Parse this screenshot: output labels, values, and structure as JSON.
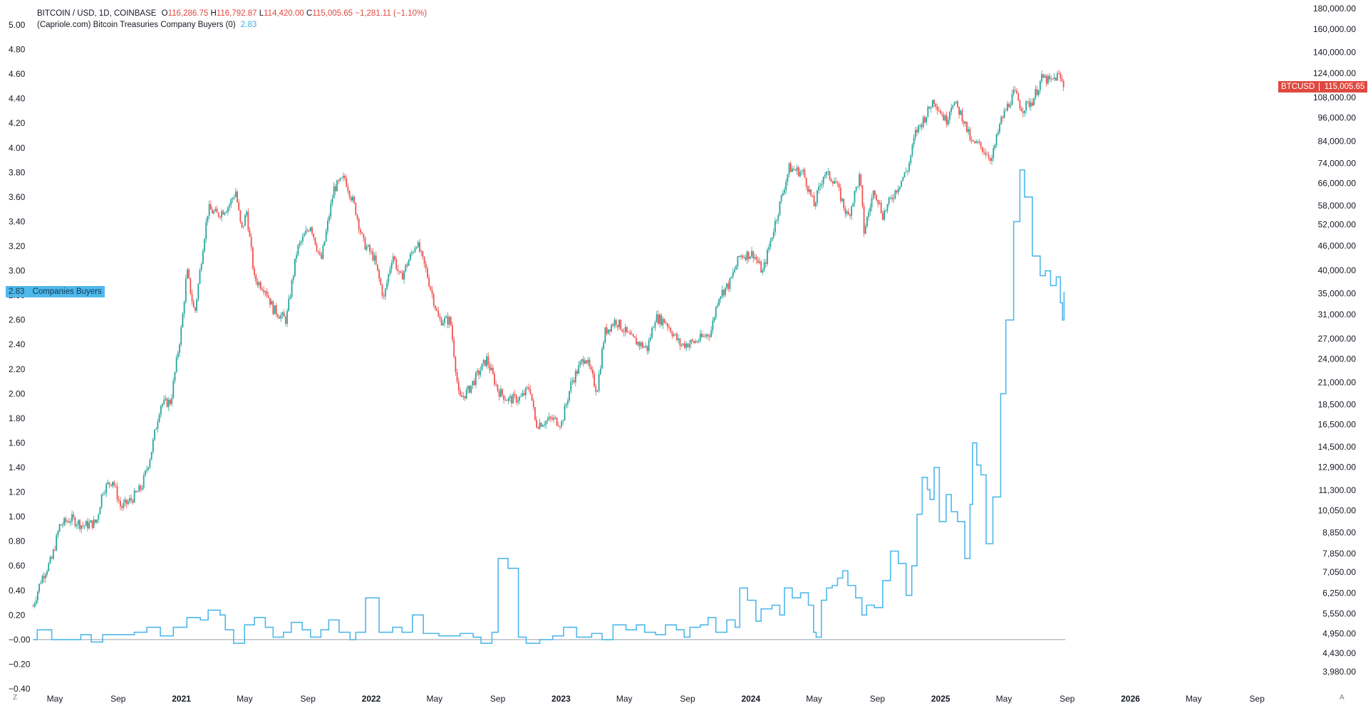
{
  "legend": {
    "symbol": "BITCOIN / USD, 1D, COINBASE",
    "o_label": "O",
    "o_value": "116,286.75",
    "h_label": "H",
    "h_value": "116,792.87",
    "l_label": "L",
    "l_value": "114,420.00",
    "c_label": "C",
    "c_value": "115,005.65",
    "change": "−1,281.11 (−1.10%)",
    "indicator": "(Capriole.com) Bitcoin Treasuries Company Buyers (0)",
    "indicator_value": "2.83"
  },
  "badges": {
    "left_value": "2.83",
    "left_label": "Companies Buyers",
    "right_label": "BTCUSD",
    "right_value": "115,005.65"
  },
  "corners": {
    "left": "Z",
    "right": "A"
  },
  "colors": {
    "up": "#26a69a",
    "down": "#ef5350",
    "indicator": "#4fb8ea",
    "price_badge": "#e0483f",
    "indicator_badge": "#4fb8ea"
  },
  "chart_data": {
    "type": "line",
    "left_axis": {
      "ticks": [
        "5.00",
        "4.80",
        "4.60",
        "4.40",
        "4.20",
        "4.00",
        "3.80",
        "3.60",
        "3.40",
        "3.20",
        "3.00",
        "2.80",
        "2.60",
        "2.40",
        "2.20",
        "2.00",
        "1.80",
        "1.60",
        "1.40",
        "1.20",
        "1.00",
        "0.80",
        "0.60",
        "0.40",
        "0.20",
        "−0.00",
        "−0.20",
        "−0.40"
      ],
      "range": [
        -0.4,
        5.0
      ]
    },
    "right_axis": {
      "scale": "log",
      "ticks": [
        "180,000.00",
        "160,000.00",
        "140,000.00",
        "124,000.00",
        "108,000.00",
        "96,000.00",
        "84,000.00",
        "74,000.00",
        "66,000.00",
        "58,000.00",
        "52,000.00",
        "46,000.00",
        "40,000.00",
        "35,000.00",
        "31,000.00",
        "27,000.00",
        "24,000.00",
        "21,000.00",
        "18,500.00",
        "16,500.00",
        "14,500.00",
        "12,900.00",
        "11,300.00",
        "10,050.00",
        "8,850.00",
        "7,850.00",
        "7,050.00",
        "6,250.00",
        "5,550.00",
        "4,950.00",
        "4,430.00",
        "3,980.00"
      ]
    },
    "x_axis": {
      "ticks": [
        {
          "label": "May",
          "bold": false
        },
        {
          "label": "Sep",
          "bold": false
        },
        {
          "label": "2021",
          "bold": true
        },
        {
          "label": "May",
          "bold": false
        },
        {
          "label": "Sep",
          "bold": false
        },
        {
          "label": "2022",
          "bold": true
        },
        {
          "label": "May",
          "bold": false
        },
        {
          "label": "Sep",
          "bold": false
        },
        {
          "label": "2023",
          "bold": true
        },
        {
          "label": "May",
          "bold": false
        },
        {
          "label": "Sep",
          "bold": false
        },
        {
          "label": "2024",
          "bold": true
        },
        {
          "label": "May",
          "bold": false
        },
        {
          "label": "Sep",
          "bold": false
        },
        {
          "label": "2025",
          "bold": true
        },
        {
          "label": "May",
          "bold": false
        },
        {
          "label": "Sep",
          "bold": false
        },
        {
          "label": "2026",
          "bold": true
        },
        {
          "label": "May",
          "bold": false
        },
        {
          "label": "Sep",
          "bold": false
        }
      ]
    },
    "series": [
      {
        "type": "candlestick",
        "name": "BTCUSD",
        "points": [
          [
            "2020-03-20",
            5800
          ],
          [
            "2020-04-05",
            6800
          ],
          [
            "2020-04-25",
            7600
          ],
          [
            "2020-05-10",
            9200
          ],
          [
            "2020-06-01",
            9600
          ],
          [
            "2020-06-25",
            9200
          ],
          [
            "2020-07-20",
            9400
          ],
          [
            "2020-08-01",
            11300
          ],
          [
            "2020-08-20",
            12000
          ],
          [
            "2020-09-05",
            10200
          ],
          [
            "2020-09-25",
            10700
          ],
          [
            "2020-10-15",
            11500
          ],
          [
            "2020-11-01",
            13800
          ],
          [
            "2020-11-20",
            18500
          ],
          [
            "2020-12-10",
            18800
          ],
          [
            "2020-12-31",
            29000
          ],
          [
            "2021-01-10",
            40000
          ],
          [
            "2021-01-25",
            31000
          ],
          [
            "2021-02-10",
            46000
          ],
          [
            "2021-02-20",
            57000
          ],
          [
            "2021-03-10",
            55000
          ],
          [
            "2021-04-01",
            58000
          ],
          [
            "2021-04-14",
            63000
          ],
          [
            "2021-04-25",
            50000
          ],
          [
            "2021-05-05",
            56000
          ],
          [
            "2021-05-20",
            38000
          ],
          [
            "2021-06-10",
            36000
          ],
          [
            "2021-06-25",
            32000
          ],
          [
            "2021-07-20",
            30000
          ],
          [
            "2021-08-10",
            45000
          ],
          [
            "2021-09-05",
            52000
          ],
          [
            "2021-09-25",
            42000
          ],
          [
            "2021-10-20",
            64000
          ],
          [
            "2021-11-10",
            68000
          ],
          [
            "2021-11-30",
            57000
          ],
          [
            "2021-12-15",
            47000
          ],
          [
            "2022-01-05",
            43000
          ],
          [
            "2022-01-24",
            34000
          ],
          [
            "2022-02-10",
            44000
          ],
          [
            "2022-02-25",
            38000
          ],
          [
            "2022-03-28",
            47000
          ],
          [
            "2022-04-15",
            40000
          ],
          [
            "2022-05-10",
            30000
          ],
          [
            "2022-06-01",
            30000
          ],
          [
            "2022-06-18",
            19000
          ],
          [
            "2022-07-05",
            20000
          ],
          [
            "2022-08-10",
            24000
          ],
          [
            "2022-09-01",
            20000
          ],
          [
            "2022-09-20",
            19000
          ],
          [
            "2022-10-15",
            19200
          ],
          [
            "2022-11-01",
            20500
          ],
          [
            "2022-11-12",
            16500
          ],
          [
            "2022-12-15",
            17000
          ],
          [
            "2023-01-01",
            16600
          ],
          [
            "2023-01-20",
            21000
          ],
          [
            "2023-02-15",
            24500
          ],
          [
            "2023-03-10",
            20000
          ],
          [
            "2023-03-25",
            28000
          ],
          [
            "2023-04-15",
            30000
          ],
          [
            "2023-05-15",
            27000
          ],
          [
            "2023-06-15",
            25500
          ],
          [
            "2023-06-30",
            30500
          ],
          [
            "2023-07-20",
            29800
          ],
          [
            "2023-08-18",
            26000
          ],
          [
            "2023-09-15",
            26500
          ],
          [
            "2023-10-15",
            28000
          ],
          [
            "2023-10-30",
            34500
          ],
          [
            "2023-11-20",
            37000
          ],
          [
            "2023-12-10",
            43500
          ],
          [
            "2024-01-05",
            44000
          ],
          [
            "2024-01-23",
            39500
          ],
          [
            "2024-02-15",
            52000
          ],
          [
            "2024-03-01",
            62000
          ],
          [
            "2024-03-14",
            72000
          ],
          [
            "2024-04-10",
            70000
          ],
          [
            "2024-05-01",
            58000
          ],
          [
            "2024-05-20",
            70000
          ],
          [
            "2024-06-10",
            67000
          ],
          [
            "2024-07-05",
            54000
          ],
          [
            "2024-07-28",
            69000
          ],
          [
            "2024-08-05",
            50000
          ],
          [
            "2024-08-25",
            64000
          ],
          [
            "2024-09-10",
            55000
          ],
          [
            "2024-10-01",
            62000
          ],
          [
            "2024-10-29",
            72000
          ],
          [
            "2024-11-12",
            88000
          ],
          [
            "2024-12-05",
            99000
          ],
          [
            "2024-12-17",
            107000
          ],
          [
            "2025-01-10",
            94000
          ],
          [
            "2025-01-22",
            106000
          ],
          [
            "2025-02-10",
            97000
          ],
          [
            "2025-02-28",
            83000
          ],
          [
            "2025-03-15",
            82000
          ],
          [
            "2025-04-08",
            76000
          ],
          [
            "2025-04-25",
            94000
          ],
          [
            "2025-05-10",
            104000
          ],
          [
            "2025-05-22",
            111000
          ],
          [
            "2025-06-05",
            101000
          ],
          [
            "2025-06-25",
            106000
          ],
          [
            "2025-07-14",
            121000
          ],
          [
            "2025-07-30",
            118000
          ],
          [
            "2025-08-14",
            123000
          ],
          [
            "2025-08-25",
            115005.65
          ]
        ]
      },
      {
        "type": "line",
        "name": "Companies Buyers",
        "points": [
          [
            "2020-03-20",
            0.0
          ],
          [
            "2020-03-28",
            0.08
          ],
          [
            "2020-04-25",
            0.0
          ],
          [
            "2020-06-20",
            0.04
          ],
          [
            "2020-07-10",
            -0.02
          ],
          [
            "2020-08-01",
            0.04
          ],
          [
            "2020-10-01",
            0.06
          ],
          [
            "2020-10-25",
            0.1
          ],
          [
            "2020-11-20",
            0.03
          ],
          [
            "2020-12-15",
            0.1
          ],
          [
            "2021-01-10",
            0.18
          ],
          [
            "2021-02-05",
            0.16
          ],
          [
            "2021-02-20",
            0.24
          ],
          [
            "2021-03-15",
            0.2
          ],
          [
            "2021-03-25",
            0.08
          ],
          [
            "2021-04-10",
            -0.03
          ],
          [
            "2021-05-01",
            0.12
          ],
          [
            "2021-05-20",
            0.18
          ],
          [
            "2021-06-10",
            0.1
          ],
          [
            "2021-06-25",
            0.02
          ],
          [
            "2021-07-15",
            0.06
          ],
          [
            "2021-07-30",
            0.14
          ],
          [
            "2021-08-20",
            0.08
          ],
          [
            "2021-09-05",
            0.02
          ],
          [
            "2021-09-25",
            0.08
          ],
          [
            "2021-10-10",
            0.16
          ],
          [
            "2021-10-30",
            0.06
          ],
          [
            "2021-11-20",
            0.0
          ],
          [
            "2021-12-01",
            0.06
          ],
          [
            "2021-12-20",
            0.34
          ],
          [
            "2022-01-15",
            0.06
          ],
          [
            "2022-02-10",
            0.1
          ],
          [
            "2022-02-28",
            0.06
          ],
          [
            "2022-03-20",
            0.2
          ],
          [
            "2022-04-10",
            0.05
          ],
          [
            "2022-05-10",
            0.03
          ],
          [
            "2022-06-20",
            0.05
          ],
          [
            "2022-07-15",
            0.02
          ],
          [
            "2022-07-30",
            -0.03
          ],
          [
            "2022-08-20",
            0.06
          ],
          [
            "2022-09-01",
            0.66
          ],
          [
            "2022-09-20",
            0.58
          ],
          [
            "2022-10-10",
            0.02
          ],
          [
            "2022-10-25",
            -0.03
          ],
          [
            "2022-11-20",
            0.0
          ],
          [
            "2022-12-15",
            0.03
          ],
          [
            "2023-01-05",
            0.1
          ],
          [
            "2023-01-30",
            0.02
          ],
          [
            "2023-02-28",
            0.05
          ],
          [
            "2023-03-20",
            0.0
          ],
          [
            "2023-04-10",
            0.12
          ],
          [
            "2023-05-05",
            0.08
          ],
          [
            "2023-05-25",
            0.12
          ],
          [
            "2023-06-10",
            0.06
          ],
          [
            "2023-07-01",
            0.04
          ],
          [
            "2023-07-20",
            0.12
          ],
          [
            "2023-08-10",
            0.08
          ],
          [
            "2023-08-25",
            0.02
          ],
          [
            "2023-09-05",
            0.1
          ],
          [
            "2023-09-25",
            0.12
          ],
          [
            "2023-10-10",
            0.18
          ],
          [
            "2023-10-25",
            0.06
          ],
          [
            "2023-11-15",
            0.16
          ],
          [
            "2023-12-01",
            0.1
          ],
          [
            "2023-12-10",
            0.42
          ],
          [
            "2023-12-25",
            0.32
          ],
          [
            "2024-01-10",
            0.15
          ],
          [
            "2024-01-20",
            0.25
          ],
          [
            "2024-02-10",
            0.28
          ],
          [
            "2024-02-25",
            0.2
          ],
          [
            "2024-03-05",
            0.42
          ],
          [
            "2024-03-20",
            0.34
          ],
          [
            "2024-04-05",
            0.38
          ],
          [
            "2024-04-20",
            0.28
          ],
          [
            "2024-04-30",
            0.06
          ],
          [
            "2024-05-05",
            0.02
          ],
          [
            "2024-05-15",
            0.32
          ],
          [
            "2024-05-25",
            0.42
          ],
          [
            "2024-06-05",
            0.44
          ],
          [
            "2024-06-15",
            0.5
          ],
          [
            "2024-06-25",
            0.56
          ],
          [
            "2024-07-05",
            0.44
          ],
          [
            "2024-07-20",
            0.34
          ],
          [
            "2024-08-01",
            0.2
          ],
          [
            "2024-08-10",
            0.28
          ],
          [
            "2024-08-25",
            0.26
          ],
          [
            "2024-09-10",
            0.48
          ],
          [
            "2024-09-25",
            0.72
          ],
          [
            "2024-10-10",
            0.62
          ],
          [
            "2024-10-25",
            0.36
          ],
          [
            "2024-11-05",
            0.6
          ],
          [
            "2024-11-15",
            1.02
          ],
          [
            "2024-11-25",
            1.32
          ],
          [
            "2024-12-05",
            1.22
          ],
          [
            "2024-12-10",
            1.14
          ],
          [
            "2024-12-18",
            1.4
          ],
          [
            "2024-12-28",
            0.96
          ],
          [
            "2025-01-10",
            1.18
          ],
          [
            "2025-01-20",
            1.04
          ],
          [
            "2025-02-01",
            0.96
          ],
          [
            "2025-02-15",
            0.66
          ],
          [
            "2025-02-25",
            1.1
          ],
          [
            "2025-03-02",
            1.6
          ],
          [
            "2025-03-10",
            1.42
          ],
          [
            "2025-03-18",
            1.34
          ],
          [
            "2025-03-28",
            0.78
          ],
          [
            "2025-04-10",
            1.16
          ],
          [
            "2025-04-25",
            2.0
          ],
          [
            "2025-05-05",
            2.6
          ],
          [
            "2025-05-20",
            3.4
          ],
          [
            "2025-06-01",
            3.82
          ],
          [
            "2025-06-10",
            3.6
          ],
          [
            "2025-06-25",
            3.12
          ],
          [
            "2025-07-10",
            2.96
          ],
          [
            "2025-07-20",
            3.0
          ],
          [
            "2025-07-30",
            2.88
          ],
          [
            "2025-08-10",
            2.95
          ],
          [
            "2025-08-18",
            2.74
          ],
          [
            "2025-08-22",
            2.6
          ],
          [
            "2025-08-25",
            2.83
          ]
        ]
      }
    ]
  }
}
